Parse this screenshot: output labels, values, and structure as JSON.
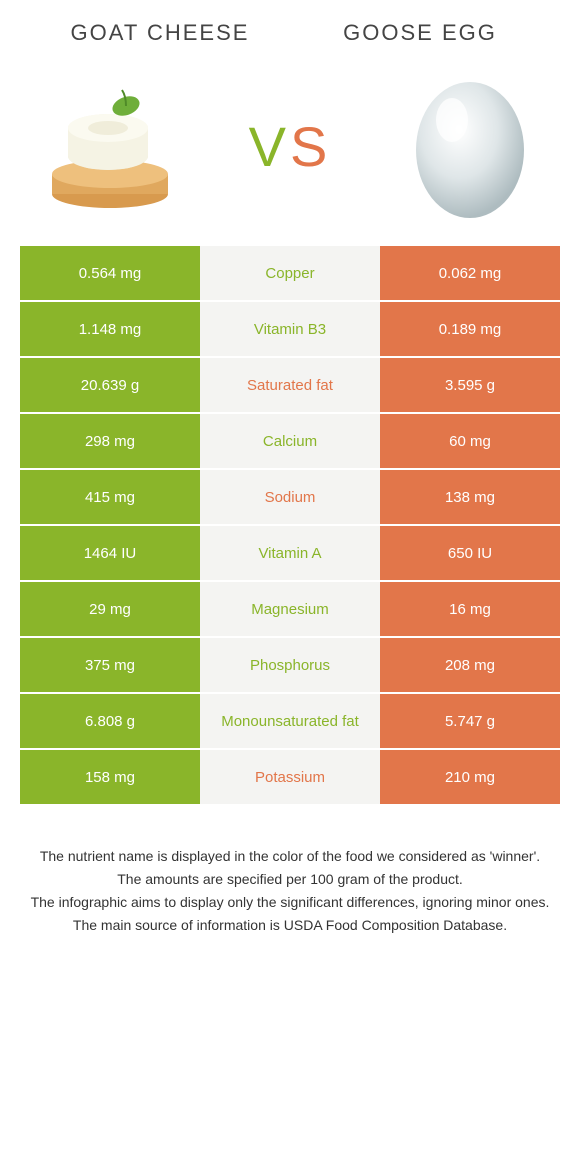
{
  "foods": {
    "left": {
      "name": "Goat Cheese",
      "color": "#8ab52a"
    },
    "right": {
      "name": "Goose Egg",
      "color": "#e2764a"
    }
  },
  "vs_label": "VS",
  "table": {
    "left_bg": "#8ab52a",
    "right_bg": "#e2764a",
    "mid_bg": "#f4f4f2",
    "rows": [
      {
        "nutrient": "Copper",
        "left": "0.564 mg",
        "right": "0.062 mg",
        "winner": "left"
      },
      {
        "nutrient": "Vitamin B3",
        "left": "1.148 mg",
        "right": "0.189 mg",
        "winner": "left"
      },
      {
        "nutrient": "Saturated fat",
        "left": "20.639 g",
        "right": "3.595 g",
        "winner": "right"
      },
      {
        "nutrient": "Calcium",
        "left": "298 mg",
        "right": "60 mg",
        "winner": "left"
      },
      {
        "nutrient": "Sodium",
        "left": "415 mg",
        "right": "138 mg",
        "winner": "right"
      },
      {
        "nutrient": "Vitamin A",
        "left": "1464 IU",
        "right": "650 IU",
        "winner": "left"
      },
      {
        "nutrient": "Magnesium",
        "left": "29 mg",
        "right": "16 mg",
        "winner": "left"
      },
      {
        "nutrient": "Phosphorus",
        "left": "375 mg",
        "right": "208 mg",
        "winner": "left"
      },
      {
        "nutrient": "Monounsaturated fat",
        "left": "6.808 g",
        "right": "5.747 g",
        "winner": "left"
      },
      {
        "nutrient": "Potassium",
        "left": "158 mg",
        "right": "210 mg",
        "winner": "right"
      }
    ]
  },
  "footnotes": [
    "The nutrient name is displayed in the color of the food we considered as 'winner'.",
    "The amounts are specified per 100 gram of the product.",
    "The infographic aims to display only the significant differences, ignoring minor ones.",
    "The main source of information is USDA Food Composition Database."
  ]
}
